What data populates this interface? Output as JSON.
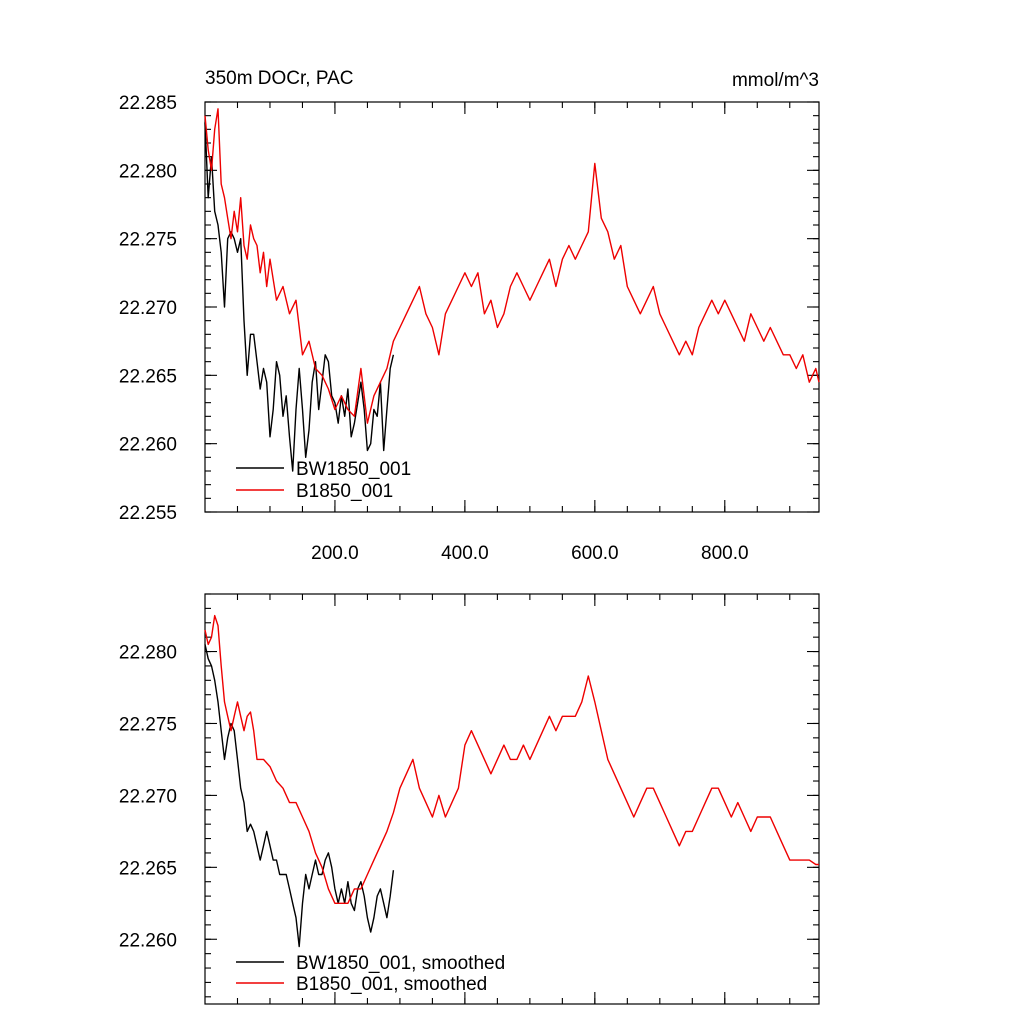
{
  "chart_data": [
    {
      "type": "line",
      "title": "350m DOCr, PAC",
      "units": "mmol/m^3",
      "xlim": [
        0,
        945
      ],
      "ylim": [
        22.255,
        22.285
      ],
      "xticks": [
        200,
        400,
        600,
        800
      ],
      "xtick_labels": [
        "200.0",
        "400.0",
        "600.0",
        "800.0"
      ],
      "yticks": [
        22.255,
        22.26,
        22.265,
        22.27,
        22.275,
        22.28,
        22.285
      ],
      "ytick_labels": [
        "22.255",
        "22.260",
        "22.265",
        "22.270",
        "22.275",
        "22.280",
        "22.285"
      ],
      "legend_position": "bottom-left",
      "series": [
        {
          "name": "BW1850_001",
          "color": "#000000",
          "x": [
            0,
            5,
            10,
            15,
            20,
            25,
            30,
            35,
            40,
            45,
            50,
            55,
            60,
            65,
            70,
            75,
            80,
            85,
            90,
            95,
            100,
            105,
            110,
            115,
            120,
            125,
            130,
            135,
            140,
            145,
            150,
            155,
            160,
            165,
            170,
            175,
            180,
            185,
            190,
            195,
            200,
            205,
            210,
            215,
            220,
            225,
            230,
            235,
            240,
            245,
            250,
            255,
            260,
            265,
            270,
            275,
            280,
            285,
            290
          ],
          "y": [
            22.2835,
            22.278,
            22.281,
            22.277,
            22.276,
            22.274,
            22.27,
            22.275,
            22.2755,
            22.275,
            22.274,
            22.275,
            22.269,
            22.265,
            22.268,
            22.268,
            22.266,
            22.264,
            22.2655,
            22.2645,
            22.2605,
            22.2625,
            22.266,
            22.265,
            22.262,
            22.2635,
            22.2605,
            22.258,
            22.2625,
            22.2655,
            22.2625,
            22.259,
            22.261,
            22.2645,
            22.266,
            22.2625,
            22.2645,
            22.2665,
            22.266,
            22.2635,
            22.263,
            22.2615,
            22.2635,
            22.262,
            22.264,
            22.2605,
            22.2615,
            22.263,
            22.2645,
            22.2625,
            22.2595,
            22.26,
            22.2625,
            22.262,
            22.2645,
            22.2595,
            22.2625,
            22.2655,
            22.2665
          ]
        },
        {
          "name": "B1850_001",
          "color": "#ee0000",
          "x": [
            0,
            5,
            10,
            15,
            20,
            25,
            30,
            35,
            40,
            45,
            50,
            55,
            60,
            65,
            70,
            75,
            80,
            85,
            90,
            95,
            100,
            110,
            120,
            130,
            140,
            150,
            160,
            170,
            180,
            190,
            200,
            210,
            220,
            230,
            240,
            250,
            260,
            270,
            280,
            290,
            300,
            310,
            320,
            330,
            340,
            350,
            360,
            370,
            380,
            390,
            400,
            410,
            420,
            430,
            440,
            450,
            460,
            470,
            480,
            490,
            500,
            510,
            520,
            530,
            540,
            550,
            560,
            570,
            580,
            590,
            600,
            610,
            620,
            630,
            640,
            650,
            660,
            670,
            680,
            690,
            700,
            710,
            720,
            730,
            740,
            750,
            760,
            770,
            780,
            790,
            800,
            810,
            820,
            830,
            840,
            850,
            860,
            870,
            880,
            890,
            900,
            910,
            920,
            930,
            940,
            945
          ],
          "y": [
            22.284,
            22.2815,
            22.28,
            22.283,
            22.2845,
            22.279,
            22.278,
            22.2765,
            22.275,
            22.277,
            22.2755,
            22.278,
            22.2745,
            22.2735,
            22.276,
            22.275,
            22.2745,
            22.2725,
            22.274,
            22.2715,
            22.2735,
            22.2705,
            22.2715,
            22.2695,
            22.2705,
            22.2665,
            22.2675,
            22.2655,
            22.265,
            22.264,
            22.2625,
            22.2635,
            22.2625,
            22.262,
            22.2655,
            22.2615,
            22.2635,
            22.2645,
            22.2655,
            22.2675,
            22.2685,
            22.2695,
            22.2705,
            22.2715,
            22.2695,
            22.2685,
            22.2665,
            22.2695,
            22.2705,
            22.2715,
            22.2725,
            22.2715,
            22.2725,
            22.2695,
            22.2705,
            22.2685,
            22.2695,
            22.2715,
            22.2725,
            22.2715,
            22.2705,
            22.2715,
            22.2725,
            22.2735,
            22.2715,
            22.2735,
            22.2745,
            22.2735,
            22.2745,
            22.2755,
            22.2805,
            22.2765,
            22.2755,
            22.2735,
            22.2745,
            22.2715,
            22.2705,
            22.2695,
            22.2705,
            22.2715,
            22.2695,
            22.2685,
            22.2675,
            22.2665,
            22.2675,
            22.2665,
            22.2685,
            22.2695,
            22.2705,
            22.2695,
            22.2705,
            22.2695,
            22.2685,
            22.2675,
            22.2695,
            22.2685,
            22.2675,
            22.2685,
            22.2675,
            22.2665,
            22.2665,
            22.2655,
            22.2665,
            22.2645,
            22.2655,
            22.2645
          ]
        }
      ]
    },
    {
      "type": "line",
      "title": "",
      "xlim": [
        0,
        945
      ],
      "ylim": [
        22.2555,
        22.284
      ],
      "xticks": [
        200,
        400,
        600,
        800
      ],
      "yticks": [
        22.26,
        22.265,
        22.27,
        22.275,
        22.28
      ],
      "ytick_labels": [
        "22.260",
        "22.265",
        "22.270",
        "22.275",
        "22.280"
      ],
      "legend_position": "bottom-left",
      "series": [
        {
          "name": "BW1850_001, smoothed",
          "color": "#000000",
          "x": [
            0,
            5,
            10,
            15,
            20,
            25,
            30,
            35,
            40,
            45,
            50,
            55,
            60,
            65,
            70,
            75,
            80,
            85,
            90,
            95,
            100,
            105,
            110,
            115,
            120,
            125,
            130,
            135,
            140,
            145,
            150,
            155,
            160,
            165,
            170,
            175,
            180,
            185,
            190,
            195,
            200,
            205,
            210,
            215,
            220,
            225,
            230,
            235,
            240,
            245,
            250,
            255,
            260,
            265,
            270,
            275,
            280,
            285,
            290
          ],
          "y": [
            22.2805,
            22.2795,
            22.279,
            22.278,
            22.2765,
            22.2745,
            22.2725,
            22.274,
            22.275,
            22.2745,
            22.2725,
            22.2705,
            22.2695,
            22.2675,
            22.268,
            22.2675,
            22.2665,
            22.2655,
            22.2665,
            22.2675,
            22.2665,
            22.2655,
            22.2655,
            22.2645,
            22.2645,
            22.2645,
            22.2635,
            22.2625,
            22.2615,
            22.2595,
            22.2625,
            22.2645,
            22.2635,
            22.2645,
            22.2655,
            22.2645,
            22.2645,
            22.2655,
            22.266,
            22.265,
            22.2635,
            22.2625,
            22.2635,
            22.2625,
            22.264,
            22.2625,
            22.262,
            22.2635,
            22.264,
            22.263,
            22.2615,
            22.2605,
            22.2615,
            22.263,
            22.2635,
            22.2625,
            22.2615,
            22.263,
            22.2648
          ]
        },
        {
          "name": "B1850_001, smoothed",
          "color": "#ee0000",
          "x": [
            0,
            5,
            10,
            15,
            20,
            25,
            30,
            35,
            40,
            45,
            50,
            55,
            60,
            65,
            70,
            75,
            80,
            90,
            100,
            110,
            120,
            130,
            140,
            150,
            160,
            170,
            180,
            190,
            200,
            210,
            220,
            230,
            240,
            250,
            260,
            270,
            280,
            290,
            300,
            310,
            320,
            330,
            340,
            350,
            360,
            370,
            380,
            390,
            400,
            410,
            420,
            430,
            440,
            450,
            460,
            470,
            480,
            490,
            500,
            510,
            520,
            530,
            540,
            550,
            560,
            570,
            580,
            590,
            600,
            610,
            620,
            630,
            640,
            650,
            660,
            670,
            680,
            690,
            700,
            710,
            720,
            730,
            740,
            750,
            760,
            770,
            780,
            790,
            800,
            810,
            820,
            830,
            840,
            850,
            860,
            870,
            880,
            890,
            900,
            910,
            920,
            930,
            940,
            945
          ],
          "y": [
            22.2815,
            22.2805,
            22.281,
            22.2825,
            22.2818,
            22.279,
            22.2765,
            22.2755,
            22.2745,
            22.2755,
            22.2765,
            22.2755,
            22.2745,
            22.2755,
            22.2758,
            22.2745,
            22.2725,
            22.2725,
            22.272,
            22.271,
            22.2705,
            22.2695,
            22.2695,
            22.2685,
            22.2675,
            22.266,
            22.265,
            22.2635,
            22.2625,
            22.2625,
            22.2625,
            22.2635,
            22.2635,
            22.2645,
            22.2655,
            22.2665,
            22.2675,
            22.2688,
            22.2705,
            22.2715,
            22.2725,
            22.2705,
            22.2695,
            22.2685,
            22.27,
            22.2685,
            22.2695,
            22.2705,
            22.2735,
            22.2745,
            22.2735,
            22.2725,
            22.2715,
            22.2725,
            22.2735,
            22.2725,
            22.2725,
            22.2735,
            22.2725,
            22.2735,
            22.2745,
            22.2755,
            22.2745,
            22.2755,
            22.2755,
            22.2755,
            22.2765,
            22.2783,
            22.2765,
            22.2745,
            22.2725,
            22.2715,
            22.2705,
            22.2695,
            22.2685,
            22.2695,
            22.2705,
            22.2705,
            22.2695,
            22.2685,
            22.2675,
            22.2665,
            22.2675,
            22.2675,
            22.2685,
            22.2695,
            22.2705,
            22.2705,
            22.2695,
            22.2685,
            22.2695,
            22.2685,
            22.2675,
            22.2685,
            22.2685,
            22.2685,
            22.2675,
            22.2665,
            22.2655,
            22.2655,
            22.2655,
            22.2655,
            22.2652,
            22.2652
          ]
        }
      ]
    }
  ]
}
